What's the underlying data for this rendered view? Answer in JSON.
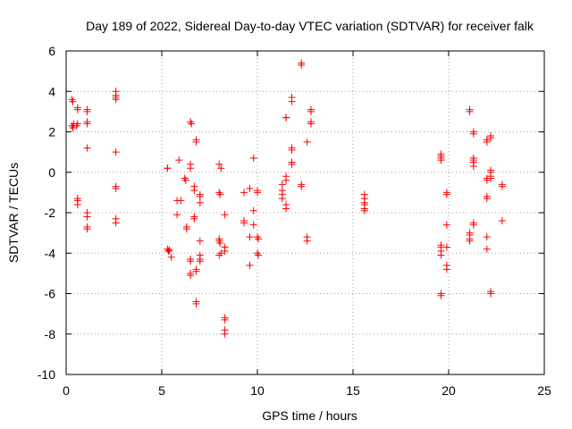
{
  "chart_data": {
    "type": "scatter",
    "title": "Day 189 of 2022, Sidereal Day-to-day VTEC variation (SDTVAR) for receiver falk",
    "xlabel": "GPS time / hours",
    "ylabel": "SDTVAR / TECUs",
    "xlim": [
      0,
      25
    ],
    "ylim": [
      -10,
      6
    ],
    "xticks": [
      0,
      5,
      10,
      15,
      20,
      25
    ],
    "yticks": [
      -10,
      -8,
      -6,
      -4,
      -2,
      0,
      2,
      4,
      6
    ],
    "grid": true,
    "marker": "+",
    "marker_color": "#ff0000",
    "series": [
      {
        "name": "SDTVAR",
        "points": [
          [
            0.3,
            3.6
          ],
          [
            0.35,
            3.5
          ],
          [
            0.3,
            2.3
          ],
          [
            0.35,
            2.2
          ],
          [
            0.4,
            2.4
          ],
          [
            0.6,
            3.2
          ],
          [
            0.6,
            3.1
          ],
          [
            0.6,
            2.4
          ],
          [
            0.55,
            2.3
          ],
          [
            0.6,
            -1.3
          ],
          [
            0.6,
            -1.4
          ],
          [
            0.6,
            -1.6
          ],
          [
            1.1,
            3.1
          ],
          [
            1.1,
            3.0
          ],
          [
            1.1,
            2.5
          ],
          [
            1.1,
            2.4
          ],
          [
            1.1,
            1.2
          ],
          [
            1.1,
            -2.0
          ],
          [
            1.1,
            -2.2
          ],
          [
            1.1,
            -2.7
          ],
          [
            1.1,
            -2.8
          ],
          [
            2.6,
            4.0
          ],
          [
            2.6,
            3.8
          ],
          [
            2.6,
            3.7
          ],
          [
            2.6,
            3.6
          ],
          [
            2.6,
            1.0
          ],
          [
            2.6,
            -0.7
          ],
          [
            2.6,
            -0.8
          ],
          [
            2.6,
            -2.3
          ],
          [
            2.6,
            -2.5
          ],
          [
            5.3,
            0.2
          ],
          [
            5.3,
            0.2
          ],
          [
            5.3,
            -3.8
          ],
          [
            5.35,
            -3.9
          ],
          [
            5.4,
            -3.85
          ],
          [
            5.5,
            -4.2
          ],
          [
            5.9,
            0.6
          ],
          [
            5.8,
            -1.4
          ],
          [
            6.0,
            -1.4
          ],
          [
            5.8,
            -2.1
          ],
          [
            6.2,
            -0.3
          ],
          [
            6.25,
            -0.4
          ],
          [
            6.3,
            -2.7
          ],
          [
            6.3,
            -2.8
          ],
          [
            6.5,
            2.5
          ],
          [
            6.55,
            2.4
          ],
          [
            6.5,
            0.4
          ],
          [
            6.5,
            0.2
          ],
          [
            6.5,
            -4.3
          ],
          [
            6.5,
            -4.4
          ],
          [
            6.5,
            -5.0
          ],
          [
            6.5,
            -5.1
          ],
          [
            6.8,
            1.6
          ],
          [
            6.8,
            1.5
          ],
          [
            6.7,
            -0.7
          ],
          [
            6.7,
            -0.9
          ],
          [
            6.7,
            -2.2
          ],
          [
            6.7,
            -2.3
          ],
          [
            6.8,
            -4.8
          ],
          [
            6.8,
            -4.9
          ],
          [
            6.8,
            -6.4
          ],
          [
            6.8,
            -6.5
          ],
          [
            7.0,
            -1.1
          ],
          [
            7.0,
            -1.2
          ],
          [
            7.0,
            -1.5
          ],
          [
            7.0,
            -3.4
          ],
          [
            7.0,
            -4.1
          ],
          [
            7.0,
            -4.3
          ],
          [
            7.0,
            -4.4
          ],
          [
            8.0,
            0.4
          ],
          [
            8.1,
            0.2
          ],
          [
            8.0,
            -1.0
          ],
          [
            8.05,
            -1.1
          ],
          [
            8.0,
            -3.3
          ],
          [
            8.0,
            -3.4
          ],
          [
            8.05,
            -3.5
          ],
          [
            8.0,
            -4.1
          ],
          [
            8.1,
            -4.0
          ],
          [
            8.3,
            -2.1
          ],
          [
            8.3,
            -3.7
          ],
          [
            8.3,
            -3.9
          ],
          [
            8.3,
            -7.2
          ],
          [
            8.3,
            -7.3
          ],
          [
            8.3,
            -7.8
          ],
          [
            8.3,
            -8.0
          ],
          [
            9.3,
            -1.0
          ],
          [
            9.3,
            -2.4
          ],
          [
            9.3,
            -2.5
          ],
          [
            9.6,
            -0.8
          ],
          [
            9.6,
            -3.2
          ],
          [
            9.6,
            -4.6
          ],
          [
            9.8,
            0.7
          ],
          [
            9.8,
            -1.9
          ],
          [
            9.8,
            -2.6
          ],
          [
            10.0,
            -0.9
          ],
          [
            10.0,
            -1.0
          ],
          [
            10.0,
            -3.2
          ],
          [
            10.05,
            -3.3
          ],
          [
            10.0,
            -4.0
          ],
          [
            10.05,
            -4.1
          ],
          [
            11.3,
            -0.6
          ],
          [
            11.3,
            -0.9
          ],
          [
            11.3,
            -1.1
          ],
          [
            11.3,
            -1.3
          ],
          [
            11.5,
            2.7
          ],
          [
            11.5,
            2.7
          ],
          [
            11.5,
            -0.2
          ],
          [
            11.5,
            -0.4
          ],
          [
            11.5,
            -1.6
          ],
          [
            11.5,
            -1.8
          ],
          [
            11.8,
            3.7
          ],
          [
            11.8,
            3.5
          ],
          [
            11.8,
            1.2
          ],
          [
            11.8,
            1.1
          ],
          [
            11.8,
            0.5
          ],
          [
            11.8,
            0.4
          ],
          [
            12.3,
            5.4
          ],
          [
            12.3,
            5.3
          ],
          [
            12.3,
            -0.6
          ],
          [
            12.3,
            -0.7
          ],
          [
            12.6,
            1.5
          ],
          [
            12.6,
            -3.2
          ],
          [
            12.6,
            -3.4
          ],
          [
            12.8,
            3.1
          ],
          [
            12.8,
            3.0
          ],
          [
            12.8,
            2.5
          ],
          [
            12.8,
            2.4
          ],
          [
            15.6,
            -1.1
          ],
          [
            15.6,
            -1.3
          ],
          [
            15.6,
            -1.5
          ],
          [
            15.6,
            -1.6
          ],
          [
            15.6,
            -1.8
          ],
          [
            15.6,
            -1.9
          ],
          [
            19.6,
            0.9
          ],
          [
            19.6,
            0.8
          ],
          [
            19.6,
            0.7
          ],
          [
            19.6,
            0.6
          ],
          [
            19.6,
            -3.6
          ],
          [
            19.6,
            -3.7
          ],
          [
            19.6,
            -3.9
          ],
          [
            19.6,
            -4.1
          ],
          [
            19.6,
            -6.0
          ],
          [
            19.6,
            -6.1
          ],
          [
            19.9,
            -1.0
          ],
          [
            19.9,
            -1.1
          ],
          [
            19.9,
            -2.6
          ],
          [
            19.9,
            -3.7
          ],
          [
            19.9,
            -4.6
          ],
          [
            19.9,
            -4.8
          ],
          [
            21.1,
            3.1
          ],
          [
            21.1,
            3.0
          ],
          [
            21.1,
            -3.0
          ],
          [
            21.1,
            -3.1
          ],
          [
            21.1,
            -3.3
          ],
          [
            21.1,
            -3.4
          ],
          [
            21.3,
            2.0
          ],
          [
            21.3,
            1.9
          ],
          [
            21.3,
            0.7
          ],
          [
            21.3,
            0.6
          ],
          [
            21.3,
            0.5
          ],
          [
            21.3,
            0.3
          ],
          [
            21.3,
            -2.5
          ],
          [
            21.3,
            -2.6
          ],
          [
            22.0,
            1.6
          ],
          [
            22.0,
            1.5
          ],
          [
            22.0,
            -0.3
          ],
          [
            22.0,
            -0.4
          ],
          [
            22.0,
            -1.2
          ],
          [
            22.0,
            -1.3
          ],
          [
            22.0,
            -3.2
          ],
          [
            22.0,
            -3.8
          ],
          [
            22.2,
            1.8
          ],
          [
            22.2,
            1.7
          ],
          [
            22.2,
            0.1
          ],
          [
            22.2,
            0.0
          ],
          [
            22.2,
            -0.2
          ],
          [
            22.2,
            -0.3
          ],
          [
            22.2,
            -5.9
          ],
          [
            22.2,
            -6.0
          ],
          [
            22.8,
            -0.6
          ],
          [
            22.8,
            -0.7
          ],
          [
            22.8,
            -2.4
          ]
        ]
      }
    ]
  }
}
